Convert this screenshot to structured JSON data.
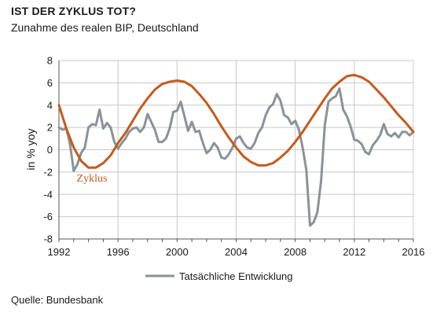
{
  "header": {
    "title": "IST DER ZYKLUS TOT?",
    "subtitle": "Zunahme des realen BIP, Deutschland"
  },
  "footer": {
    "source": "Quelle: Bundesbank"
  },
  "colors": {
    "actual": "#8a9299",
    "cycle": "#c55a1c",
    "grid": "#c8c8c8",
    "axis": "#555555"
  },
  "chart_data": {
    "type": "line",
    "ylabel": "in %  yoy",
    "xlim": [
      1992,
      2016
    ],
    "ylim": [
      -8,
      8
    ],
    "x_ticks": [
      "1992",
      "1996",
      "2000",
      "2004",
      "2008",
      "2012",
      "2016"
    ],
    "y_ticks": [
      "-8",
      "-6",
      "-4",
      "-2",
      "0",
      "2",
      "4",
      "6",
      "8"
    ],
    "grid": true,
    "legend_position": "bottom-center",
    "annotation": {
      "text": "Zyklus",
      "x": 1993.2,
      "y": -2.5
    },
    "series": [
      {
        "name": "Tatsächliche Entwicklung",
        "x": [
          1992.0,
          1992.25,
          1992.5,
          1992.75,
          1993.0,
          1993.25,
          1993.5,
          1993.75,
          1994.0,
          1994.25,
          1994.5,
          1994.75,
          1995.0,
          1995.25,
          1995.5,
          1995.75,
          1996.0,
          1996.25,
          1996.5,
          1996.75,
          1997.0,
          1997.25,
          1997.5,
          1997.75,
          1998.0,
          1998.25,
          1998.5,
          1998.75,
          1999.0,
          1999.25,
          1999.5,
          1999.75,
          2000.0,
          2000.25,
          2000.5,
          2000.75,
          2001.0,
          2001.25,
          2001.5,
          2001.75,
          2002.0,
          2002.25,
          2002.5,
          2002.75,
          2003.0,
          2003.25,
          2003.5,
          2003.75,
          2004.0,
          2004.25,
          2004.5,
          2004.75,
          2005.0,
          2005.25,
          2005.5,
          2005.75,
          2006.0,
          2006.25,
          2006.5,
          2006.75,
          2007.0,
          2007.25,
          2007.5,
          2007.75,
          2008.0,
          2008.25,
          2008.5,
          2008.75,
          2009.0,
          2009.25,
          2009.5,
          2009.75,
          2010.0,
          2010.25,
          2010.5,
          2010.75,
          2011.0,
          2011.25,
          2011.5,
          2011.75,
          2012.0,
          2012.25,
          2012.5,
          2012.75,
          2013.0,
          2013.25,
          2013.5,
          2013.75,
          2014.0,
          2014.25,
          2014.5,
          2014.75,
          2015.0,
          2015.25,
          2015.5,
          2015.75,
          2016.0
        ],
        "values": [
          2.0,
          1.8,
          1.9,
          0.5,
          -1.9,
          -1.3,
          -0.3,
          0.2,
          2.0,
          2.3,
          2.2,
          3.6,
          1.9,
          2.4,
          2.0,
          0.7,
          0.1,
          0.6,
          1.0,
          1.6,
          1.9,
          2.0,
          1.6,
          2.0,
          3.2,
          2.5,
          1.8,
          0.7,
          0.7,
          1.0,
          1.9,
          3.4,
          3.5,
          4.3,
          3.0,
          1.7,
          2.5,
          1.6,
          1.7,
          0.6,
          -0.3,
          0.0,
          0.6,
          0.2,
          -0.7,
          -0.8,
          -0.4,
          0.2,
          1.0,
          1.2,
          0.6,
          0.2,
          0.1,
          0.6,
          1.5,
          2.0,
          3.1,
          3.8,
          4.1,
          5.0,
          4.4,
          3.1,
          2.9,
          2.3,
          2.6,
          1.8,
          0.2,
          -1.8,
          -6.8,
          -6.5,
          -5.6,
          -2.8,
          2.2,
          4.3,
          4.6,
          4.8,
          5.5,
          3.6,
          3.0,
          2.1,
          0.9,
          0.8,
          0.5,
          -0.2,
          -0.4,
          0.4,
          0.8,
          1.3,
          2.3,
          1.4,
          1.2,
          1.5,
          1.1,
          1.6,
          1.6,
          1.3,
          1.6
        ]
      },
      {
        "name": "Zyklus",
        "x": [
          1992.0,
          1992.5,
          1993.0,
          1993.5,
          1994.0,
          1994.5,
          1995.0,
          1995.5,
          1996.0,
          1996.5,
          1997.0,
          1997.5,
          1998.0,
          1998.5,
          1999.0,
          1999.5,
          2000.0,
          2000.5,
          2001.0,
          2001.5,
          2002.0,
          2002.5,
          2003.0,
          2003.5,
          2004.0,
          2004.5,
          2005.0,
          2005.5,
          2006.0,
          2006.5,
          2007.0,
          2007.5,
          2008.0,
          2008.5,
          2009.0,
          2009.5,
          2010.0,
          2010.5,
          2011.0,
          2011.5,
          2012.0,
          2012.5,
          2013.0,
          2013.5,
          2014.0,
          2014.5,
          2015.0,
          2015.5,
          2016.0
        ],
        "values": [
          4.0,
          1.9,
          0.2,
          -1.0,
          -1.6,
          -1.6,
          -1.2,
          -0.5,
          0.6,
          1.5,
          2.6,
          3.7,
          4.6,
          5.4,
          5.9,
          6.1,
          6.2,
          6.1,
          5.7,
          5.0,
          4.2,
          3.2,
          2.1,
          1.1,
          0.2,
          -0.6,
          -1.1,
          -1.4,
          -1.4,
          -1.2,
          -0.7,
          -0.1,
          0.7,
          1.6,
          2.6,
          3.6,
          4.6,
          5.5,
          6.1,
          6.6,
          6.7,
          6.5,
          6.1,
          5.4,
          4.7,
          3.9,
          3.1,
          2.4,
          1.6
        ]
      }
    ]
  }
}
